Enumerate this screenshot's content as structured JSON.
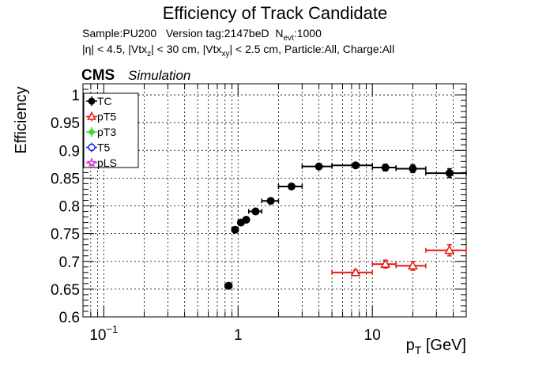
{
  "chart_data": {
    "type": "scatter",
    "title": "Efficiency of Track Candidate",
    "subtitle_line1": {
      "prefix": "Sample:PU200   Version tag:2147beD  N",
      "sub": "evt",
      "suffix": ":1000"
    },
    "subtitle_line2": {
      "p1": "|η| < 4.5, |Vtx",
      "s1": "z",
      "p2": "| < 30 cm, |Vtx",
      "s2": "xy",
      "p3": "| < 2.5 cm, Particle:All, Charge:All"
    },
    "cms_label": "CMS",
    "simulation_label": "Simulation",
    "ylabel": "Efficiency",
    "xlabel": {
      "main": "p",
      "sub": "T",
      "unit": " [GeV]"
    },
    "xscale": "log",
    "xlim": [
      0.07,
      50
    ],
    "ylim": [
      0.6,
      1.02
    ],
    "grid": true,
    "x_ticks": [
      {
        "value": 0.1,
        "base": "10",
        "exp": "−1"
      },
      {
        "value": 1,
        "base": "1",
        "exp": ""
      },
      {
        "value": 10,
        "base": "10",
        "exp": ""
      }
    ],
    "y_ticks": [
      {
        "value": 0.6,
        "label": "0.6"
      },
      {
        "value": 0.65,
        "label": "0.65"
      },
      {
        "value": 0.7,
        "label": "0.7"
      },
      {
        "value": 0.75,
        "label": "0.75"
      },
      {
        "value": 0.8,
        "label": "0.8"
      },
      {
        "value": 0.85,
        "label": "0.85"
      },
      {
        "value": 0.9,
        "label": "0.9"
      },
      {
        "value": 0.95,
        "label": "0.95"
      },
      {
        "value": 1,
        "label": "1"
      }
    ],
    "legend_position": "top-left",
    "series": [
      {
        "name": "TC",
        "color": "#000000",
        "marker": "filled-circle",
        "points": [
          {
            "x": 0.85,
            "xlo": 0.8,
            "xhi": 0.9,
            "y": 0.656,
            "yerr": 0.003
          },
          {
            "x": 0.95,
            "xlo": 0.9,
            "xhi": 1.0,
            "y": 0.757,
            "yerr": 0.003
          },
          {
            "x": 1.05,
            "xlo": 1.0,
            "xhi": 1.1,
            "y": 0.77,
            "yerr": 0.003
          },
          {
            "x": 1.15,
            "xlo": 1.1,
            "xhi": 1.2,
            "y": 0.775,
            "yerr": 0.003
          },
          {
            "x": 1.35,
            "xlo": 1.2,
            "xhi": 1.5,
            "y": 0.79,
            "yerr": 0.003
          },
          {
            "x": 1.75,
            "xlo": 1.5,
            "xhi": 2.0,
            "y": 0.809,
            "yerr": 0.003
          },
          {
            "x": 2.5,
            "xlo": 2.0,
            "xhi": 3.0,
            "y": 0.835,
            "yerr": 0.003
          },
          {
            "x": 4.0,
            "xlo": 3.0,
            "xhi": 5.0,
            "y": 0.871,
            "yerr": 0.004
          },
          {
            "x": 7.5,
            "xlo": 5.0,
            "xhi": 10.0,
            "y": 0.873,
            "yerr": 0.004
          },
          {
            "x": 12.5,
            "xlo": 10.0,
            "xhi": 15.0,
            "y": 0.869,
            "yerr": 0.006
          },
          {
            "x": 20.0,
            "xlo": 15.0,
            "xhi": 25.0,
            "y": 0.867,
            "yerr": 0.007
          },
          {
            "x": 37.5,
            "xlo": 25.0,
            "xhi": 50.0,
            "y": 0.859,
            "yerr": 0.008
          }
        ]
      },
      {
        "name": "pT5",
        "color": "#e8170d",
        "marker": "open-triangle",
        "points": [
          {
            "x": 7.5,
            "xlo": 5.0,
            "xhi": 10.0,
            "y": 0.68,
            "yerr": 0.004
          },
          {
            "x": 12.5,
            "xlo": 10.0,
            "xhi": 15.0,
            "y": 0.695,
            "yerr": 0.007
          },
          {
            "x": 20.0,
            "xlo": 15.0,
            "xhi": 25.0,
            "y": 0.692,
            "yerr": 0.008
          },
          {
            "x": 37.5,
            "xlo": 25.0,
            "xhi": 50.0,
            "y": 0.72,
            "yerr": 0.01
          }
        ]
      },
      {
        "name": "pT3",
        "color": "#2fdd29",
        "marker": "filled-diamond",
        "points": []
      },
      {
        "name": "T5",
        "color": "#1a1aff",
        "marker": "open-circle",
        "points": []
      },
      {
        "name": "pLS",
        "color": "#d62ad6",
        "marker": "open-star",
        "points": []
      }
    ]
  }
}
